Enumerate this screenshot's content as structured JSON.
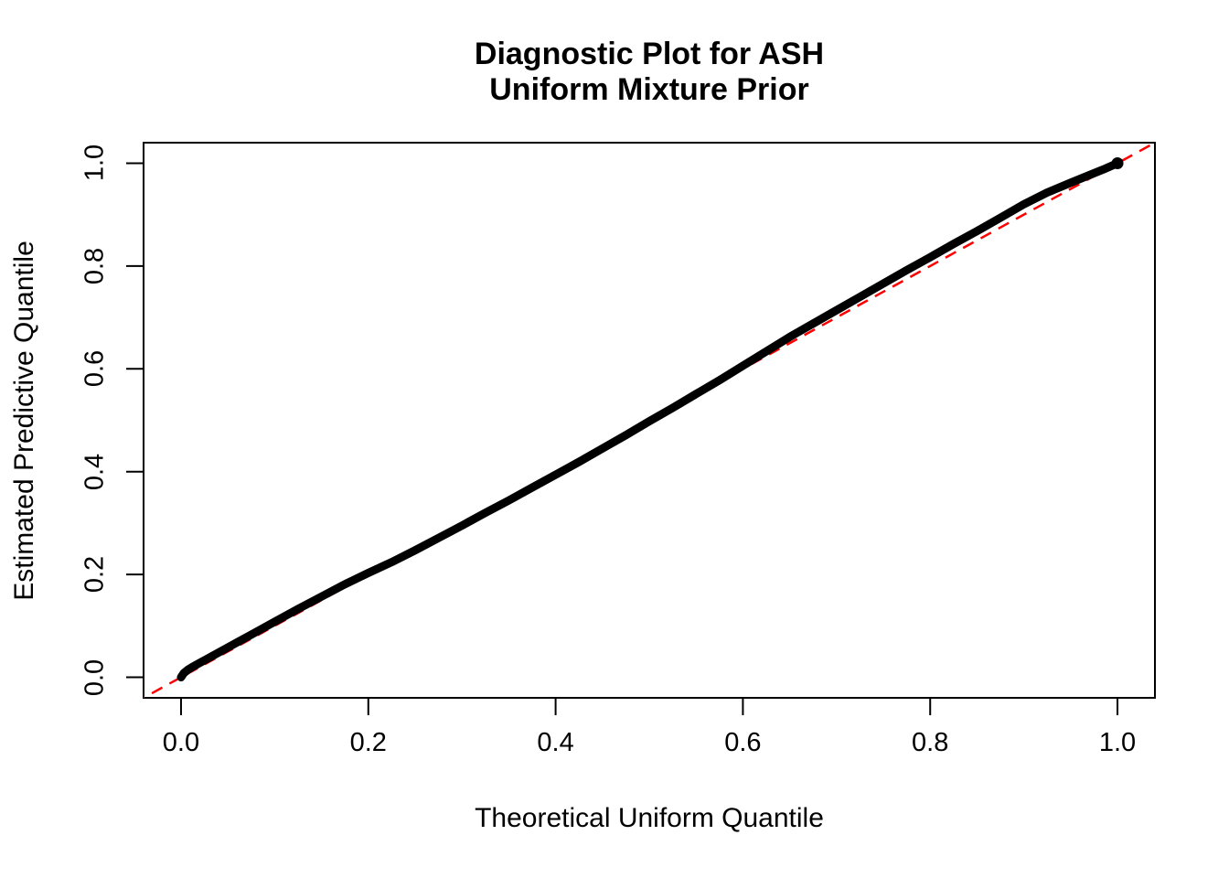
{
  "chart_data": {
    "type": "line",
    "title": "Diagnostic Plot for ASH\nUniform Mixture Prior",
    "xlabel": "Theoretical Uniform Quantile",
    "ylabel": "Estimated Predictive Quantile",
    "xlim": [
      -0.04,
      1.04
    ],
    "ylim": [
      -0.04,
      1.04
    ],
    "grid": false,
    "legend": "none",
    "x_ticks": {
      "values": [
        0.0,
        0.2,
        0.4,
        0.6,
        0.8,
        1.0
      ],
      "labels": [
        "0.0",
        "0.2",
        "0.4",
        "0.6",
        "0.8",
        "1.0"
      ]
    },
    "y_ticks": {
      "values": [
        0.0,
        0.2,
        0.4,
        0.6,
        0.8,
        1.0
      ],
      "labels": [
        "0.0",
        "0.2",
        "0.4",
        "0.6",
        "0.8",
        "1.0"
      ]
    },
    "colors": {
      "curve": "#000000",
      "reference_line": "#FF0000",
      "axis": "#000000",
      "background": "#FFFFFF"
    },
    "series": [
      {
        "name": "estimated-predictive-quantiles",
        "kind": "dense-point-curve",
        "color": "#000000",
        "points": [
          [
            0.0,
            0.0
          ],
          [
            0.003,
            0.008
          ],
          [
            0.007,
            0.014
          ],
          [
            0.012,
            0.02
          ],
          [
            0.02,
            0.028
          ],
          [
            0.03,
            0.038
          ],
          [
            0.05,
            0.058
          ],
          [
            0.075,
            0.083
          ],
          [
            0.1,
            0.108
          ],
          [
            0.125,
            0.133
          ],
          [
            0.15,
            0.157
          ],
          [
            0.175,
            0.181
          ],
          [
            0.2,
            0.203
          ],
          [
            0.225,
            0.224
          ],
          [
            0.25,
            0.247
          ],
          [
            0.275,
            0.271
          ],
          [
            0.3,
            0.295
          ],
          [
            0.325,
            0.32
          ],
          [
            0.35,
            0.344
          ],
          [
            0.375,
            0.369
          ],
          [
            0.4,
            0.394
          ],
          [
            0.425,
            0.419
          ],
          [
            0.45,
            0.445
          ],
          [
            0.475,
            0.471
          ],
          [
            0.5,
            0.498
          ],
          [
            0.525,
            0.524
          ],
          [
            0.55,
            0.551
          ],
          [
            0.575,
            0.578
          ],
          [
            0.6,
            0.606
          ],
          [
            0.625,
            0.634
          ],
          [
            0.65,
            0.662
          ],
          [
            0.675,
            0.688
          ],
          [
            0.7,
            0.714
          ],
          [
            0.725,
            0.74
          ],
          [
            0.75,
            0.766
          ],
          [
            0.775,
            0.792
          ],
          [
            0.8,
            0.817
          ],
          [
            0.825,
            0.843
          ],
          [
            0.85,
            0.868
          ],
          [
            0.875,
            0.894
          ],
          [
            0.9,
            0.92
          ],
          [
            0.925,
            0.943
          ],
          [
            0.95,
            0.962
          ],
          [
            0.97,
            0.977
          ],
          [
            0.985,
            0.988
          ],
          [
            0.995,
            0.996
          ],
          [
            1.0,
            1.0
          ]
        ]
      },
      {
        "name": "identity-reference-line",
        "kind": "dashed-line",
        "color": "#FF0000",
        "points": [
          [
            -0.05,
            -0.05
          ],
          [
            1.05,
            1.05
          ]
        ]
      }
    ]
  }
}
